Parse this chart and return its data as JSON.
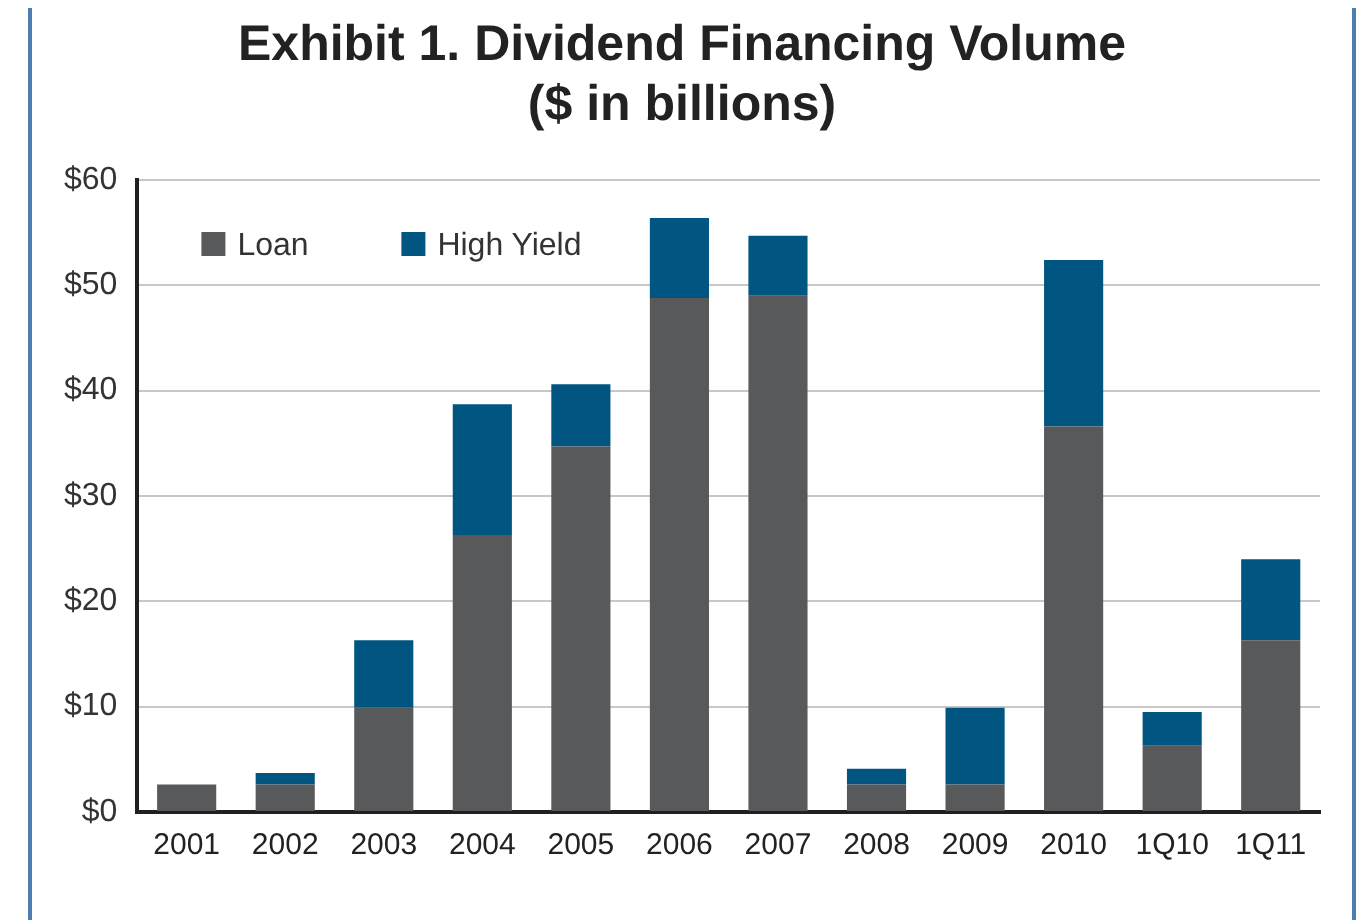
{
  "chart_data": {
    "type": "bar",
    "title": "Exhibit 1. Dividend Financing Volume",
    "subtitle": "($ in billions)",
    "categories": [
      "2001",
      "2002",
      "2003",
      "2004",
      "2005",
      "2006",
      "2007",
      "2008",
      "2009",
      "2010",
      "1Q10",
      "1Q11"
    ],
    "stacked": true,
    "series": [
      {
        "name": "Loan",
        "color": "#58595b",
        "values": [
          2.6,
          2.6,
          9.9,
          26.3,
          34.7,
          48.8,
          49.0,
          2.6,
          2.6,
          36.6,
          6.3,
          16.3
        ]
      },
      {
        "name": "High Yield",
        "color": "#005581",
        "values": [
          0,
          1.1,
          6.4,
          12.4,
          5.9,
          7.6,
          5.7,
          1.5,
          7.3,
          15.8,
          3.2,
          7.7
        ]
      }
    ],
    "ylim": [
      0,
      60
    ],
    "yticks": [
      {
        "value": 0,
        "label": "$0"
      },
      {
        "value": 10,
        "label": "$10"
      },
      {
        "value": 20,
        "label": "$20"
      },
      {
        "value": 30,
        "label": "$30"
      },
      {
        "value": 40,
        "label": "$40"
      },
      {
        "value": 50,
        "label": "$50"
      },
      {
        "value": 60,
        "label": "$60"
      }
    ],
    "grid": "y",
    "legend": "top left"
  }
}
